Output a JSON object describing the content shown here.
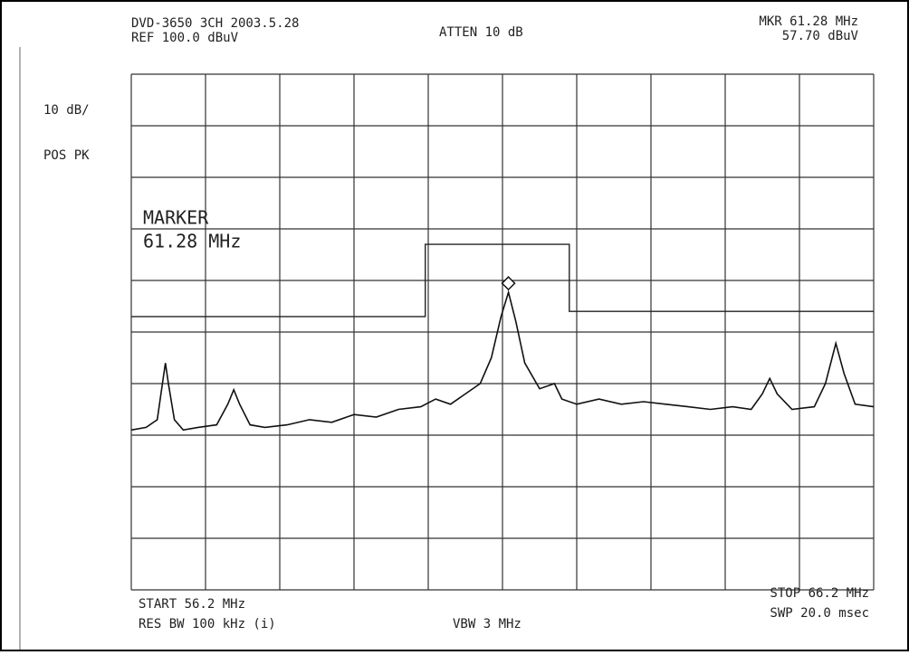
{
  "chart_data": {
    "type": "line",
    "labels": {
      "header": "DVD-3650  3CH  2003.5.28",
      "ref": "REF  100.0 dBuV",
      "atten": "ATTEN 10 dB",
      "mkr_freq": "MKR 61.28 MHz",
      "mkr_level": "57.70 dBuV",
      "scale": "10 dB/",
      "detector": "POS PK",
      "marker_title": "MARKER",
      "marker_freq": "61.28 MHz",
      "start": "START 56.2 MHz",
      "res_bw": "RES BW 100 kHz (i)",
      "vbw": "VBW 3 MHz",
      "stop": "STOP 66.2 MHz",
      "sweep": "SWP 20.0 msec"
    },
    "xlim": [
      56.2,
      66.2
    ],
    "ylim": [
      0,
      100
    ],
    "marker_index": 28,
    "series": [
      {
        "color": "#111111",
        "x": [
          56.2,
          56.4,
          56.55,
          56.62,
          56.66,
          56.7,
          56.78,
          56.9,
          57.1,
          57.35,
          57.5,
          57.58,
          57.66,
          57.8,
          58.0,
          58.3,
          58.6,
          58.9,
          59.2,
          59.5,
          59.8,
          60.1,
          60.3,
          60.5,
          60.7,
          60.9,
          61.05,
          61.18,
          61.28,
          61.38,
          61.5,
          61.7,
          61.9,
          62.0,
          62.2,
          62.5,
          62.8,
          63.1,
          63.4,
          63.7,
          64.0,
          64.3,
          64.55,
          64.7,
          64.8,
          64.9,
          65.1,
          65.4,
          65.55,
          65.69,
          65.8,
          65.95,
          66.2
        ],
        "values": [
          31,
          31.5,
          33,
          40,
          44,
          40,
          33,
          31,
          31.5,
          32,
          36,
          38.8,
          36,
          32,
          31.5,
          32,
          33,
          32.5,
          34,
          33.5,
          35,
          35.5,
          37,
          36,
          38,
          40,
          45,
          53,
          57.7,
          52,
          44,
          39,
          40,
          37,
          36,
          37,
          36,
          36.5,
          36,
          35.5,
          35,
          35.5,
          35,
          38,
          41,
          38,
          35,
          35.5,
          40,
          47.8,
          42,
          36,
          35.5
        ]
      },
      {
        "color": "#222222",
        "x": [
          56.2,
          60.16,
          60.16,
          62.1,
          62.1,
          66.2
        ],
        "values": [
          53,
          53,
          67,
          67,
          54,
          54
        ]
      }
    ]
  }
}
